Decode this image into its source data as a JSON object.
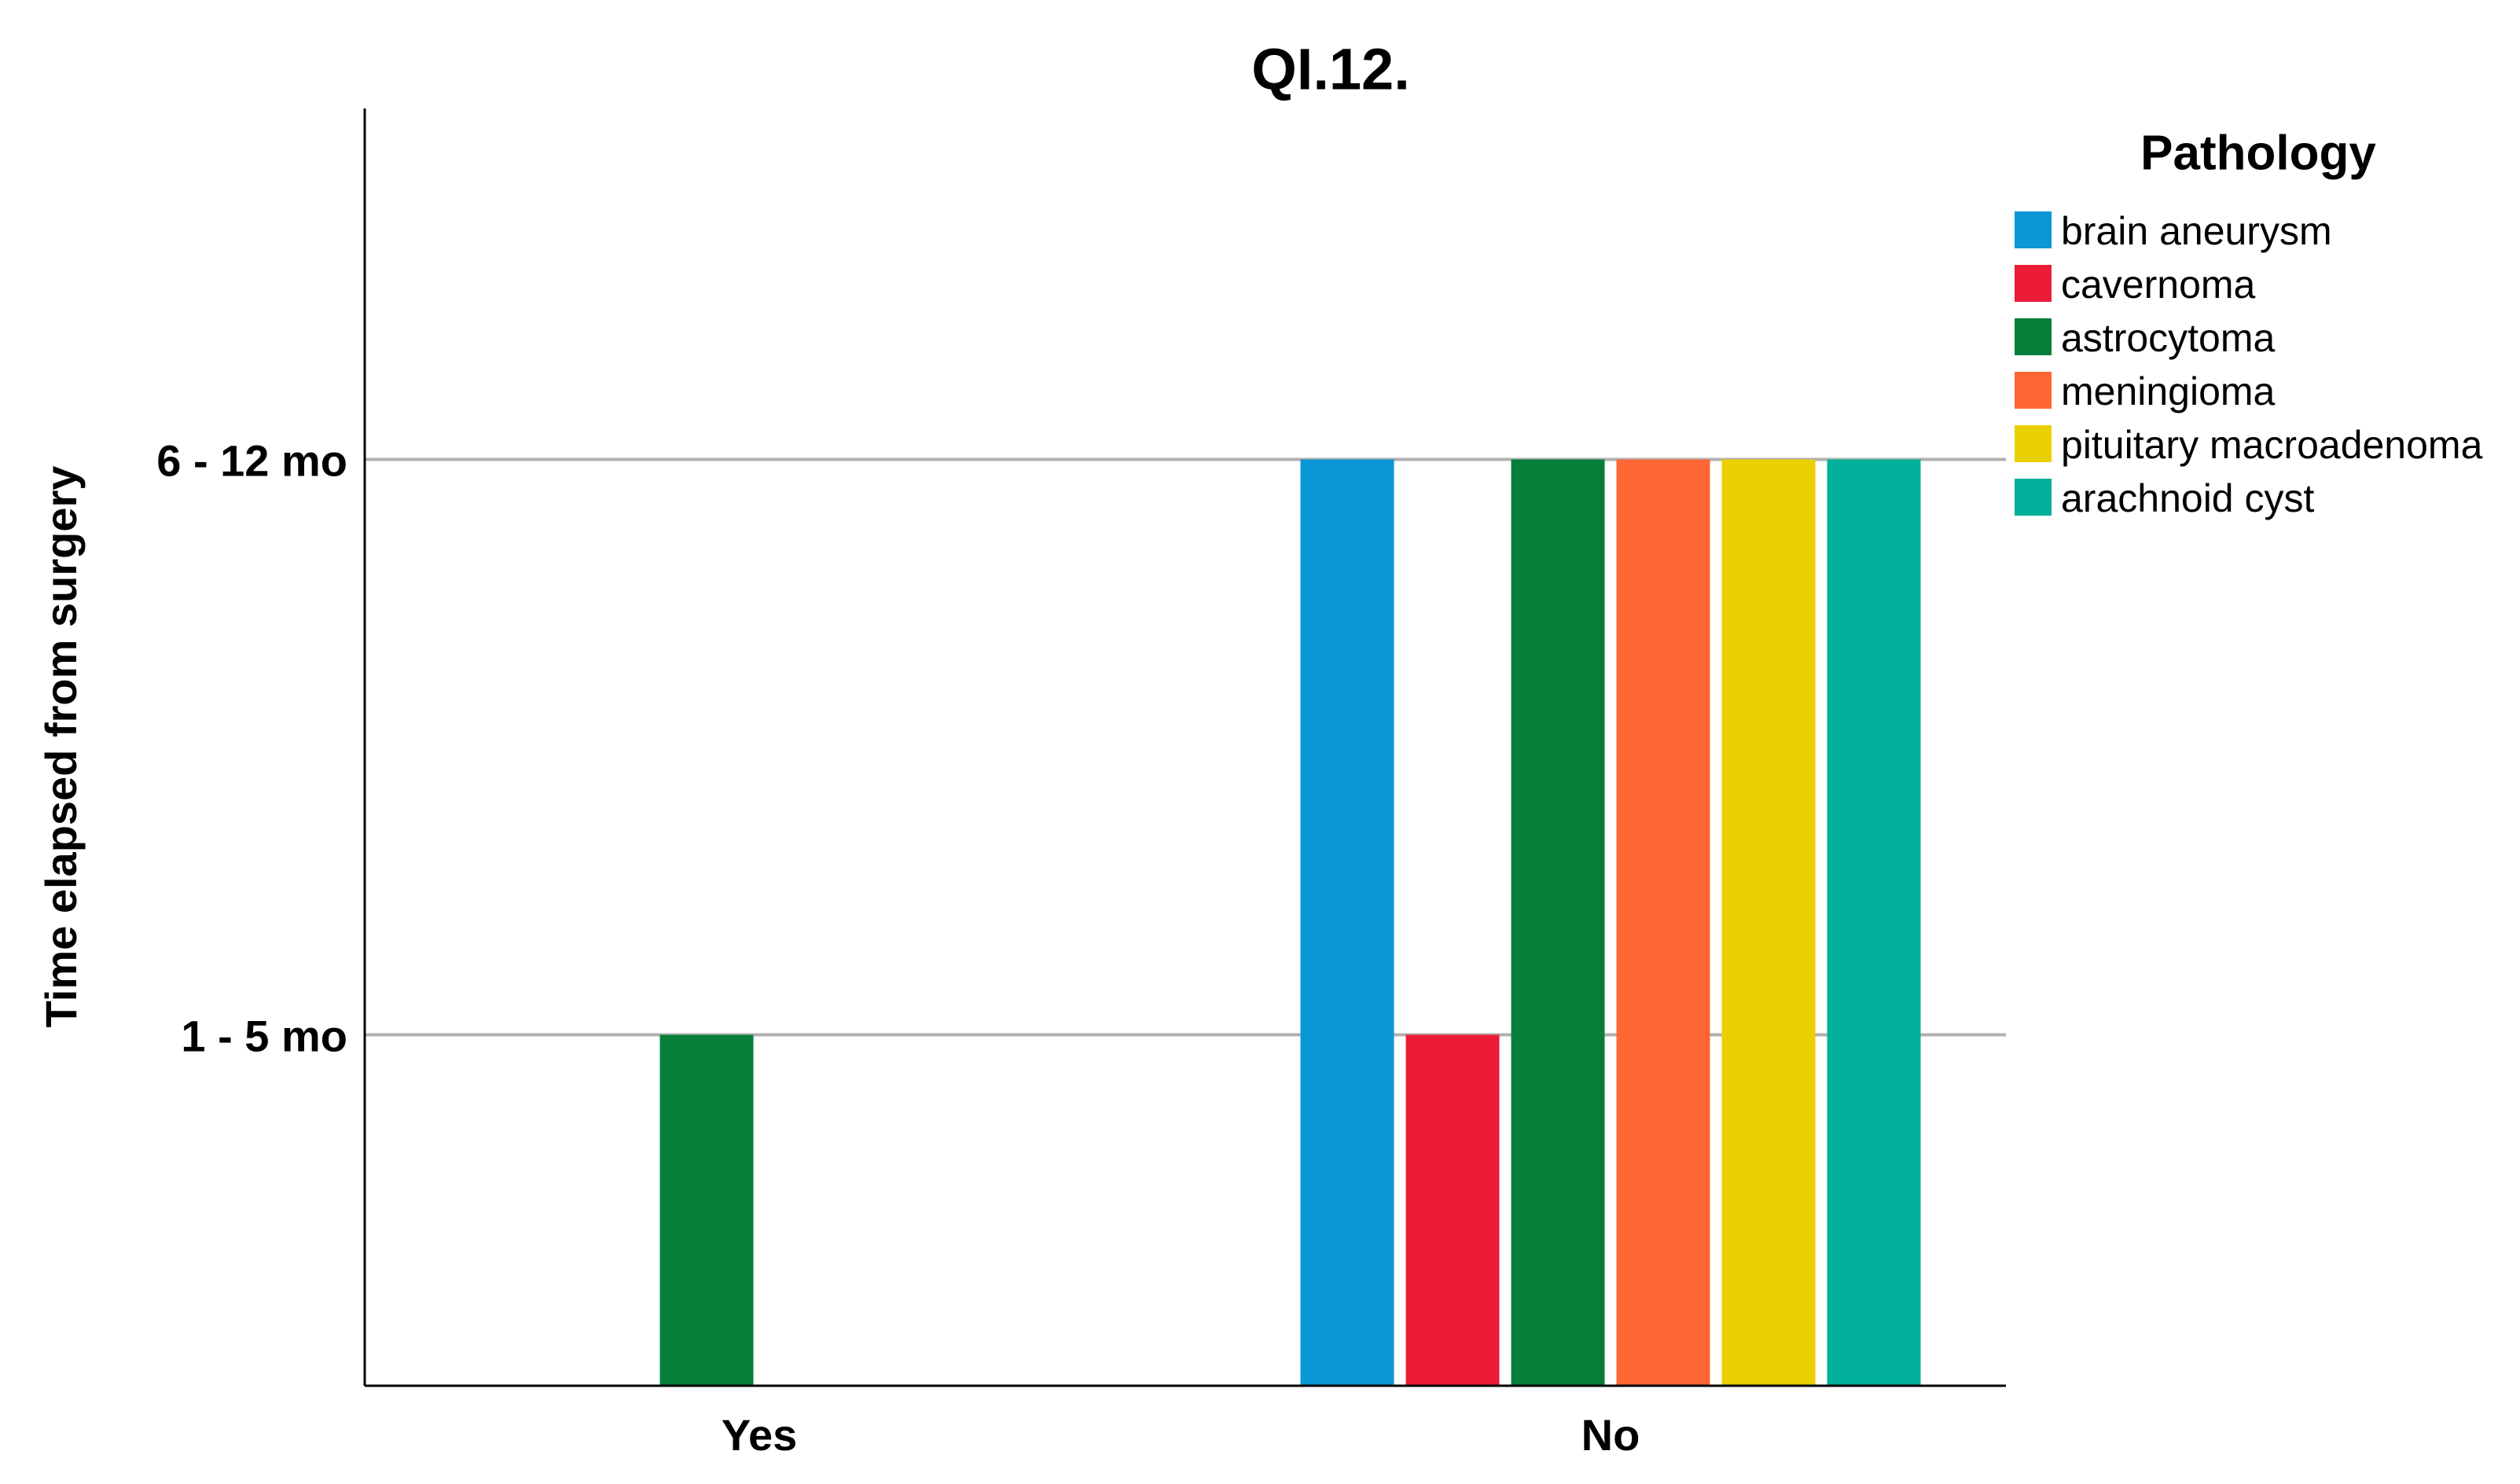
{
  "chart_data": {
    "type": "bar",
    "title": "QI.12.",
    "y_label": "Time elapsed from surgery",
    "categories": [
      "Yes",
      "No"
    ],
    "legend_title": "Pathology",
    "series": [
      {
        "name": "brain aneurysm",
        "color": "#0b96d6",
        "values": [
          null,
          2
        ]
      },
      {
        "name": "cavernoma",
        "color": "#ec1c37",
        "values": [
          null,
          1
        ]
      },
      {
        "name": "astrocytoma",
        "color": "#057f39",
        "values": [
          1,
          2
        ]
      },
      {
        "name": "meningioma",
        "color": "#ff6633",
        "values": [
          null,
          2
        ]
      },
      {
        "name": "pituitary macroadenoma",
        "color": "#ead000",
        "values": [
          null,
          2
        ]
      },
      {
        "name": "arachnoid cyst",
        "color": "#00b09a",
        "values": [
          null,
          2
        ]
      }
    ],
    "ylim": [
      0.39,
      2.61
    ],
    "yticks": [
      {
        "value": 1,
        "label": "1 - 5 mo"
      },
      {
        "value": 2,
        "label": "6 - 12 mo"
      }
    ],
    "grid": true
  }
}
